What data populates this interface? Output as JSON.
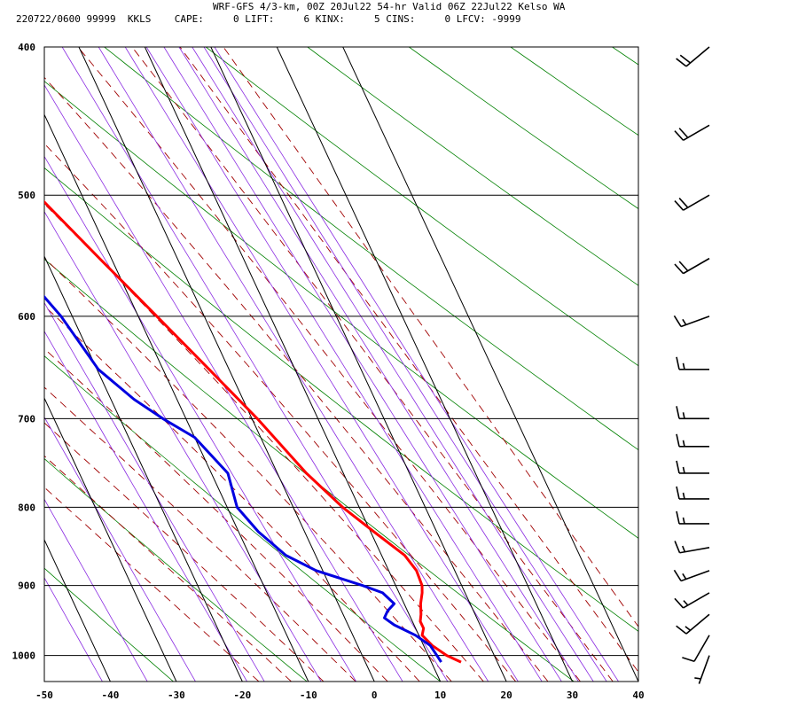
{
  "header": {
    "line1": "WRF-GFS 4/3-km, 00Z 20Jul22 54-hr Valid 06Z 22Jul22 Kelso WA",
    "line2": "220722/0600 99999  KKLS    CAPE:     0 LIFT:     6 KINX:     5 CINS:     0 LFCV: -9999"
  },
  "colors": {
    "temperature": "#ff0000",
    "dewpoint": "#0000e0",
    "isobar": "#000000",
    "isotherm": "#000000",
    "dry_adiabat": "#008000",
    "moist_adiabat": "#a00000",
    "mixing_ratio": "#8a2be2",
    "wind_barb": "#000000"
  },
  "chart_data": {
    "type": "line",
    "subtype": "skew-t log-p sounding",
    "xlabel": "",
    "ylabel": "",
    "x_ticks": [
      -50,
      -40,
      -30,
      -20,
      -10,
      0,
      10,
      20,
      30,
      40
    ],
    "y_ticks": [
      400,
      500,
      600,
      700,
      800,
      900,
      1000
    ],
    "xlim": [
      -50,
      40
    ],
    "ylim": [
      1040,
      400
    ],
    "y_scale": "log",
    "series": [
      {
        "key": "temperature",
        "pressure": [
          1010,
          1000,
          985,
          970,
          960,
          950,
          940,
          925,
          910,
          900,
          880,
          860,
          830,
          800,
          760,
          700,
          650,
          600,
          550,
          500,
          470,
          440,
          415
        ],
        "x": [
          14.5,
          12.8,
          11.3,
          10.5,
          11.2,
          11.2,
          11.8,
          12.5,
          13.5,
          14.0,
          14.2,
          13.5,
          10.5,
          7.5,
          4.4,
          0.8,
          -3.0,
          -7.2,
          -11.8,
          -16.7,
          -20.3,
          -23.8,
          -26.5
        ]
      },
      {
        "key": "dewpoint",
        "pressure": [
          1010,
          1000,
          985,
          970,
          955,
          945,
          935,
          925,
          910,
          900,
          880,
          860,
          830,
          800,
          760,
          720,
          700,
          680,
          650,
          600,
          550,
          500,
          470,
          440,
          415
        ],
        "x": [
          11.5,
          11.3,
          11.0,
          9.5,
          7.0,
          6.0,
          7.0,
          8.5,
          7.5,
          5.0,
          -1.0,
          -4.5,
          -7.0,
          -8.5,
          -7.5,
          -10.0,
          -13.5,
          -16.5,
          -19.8,
          -21.7,
          -25.2,
          -29.3,
          -31.2,
          -36.5,
          -43.5
        ]
      }
    ],
    "wind_barbs": [
      {
        "pressure": 1000,
        "direction": 200,
        "speed": 5
      },
      {
        "pressure": 970,
        "direction": 210,
        "speed": 10
      },
      {
        "pressure": 940,
        "direction": 230,
        "speed": 15
      },
      {
        "pressure": 910,
        "direction": 240,
        "speed": 15
      },
      {
        "pressure": 880,
        "direction": 250,
        "speed": 15
      },
      {
        "pressure": 850,
        "direction": 260,
        "speed": 15
      },
      {
        "pressure": 820,
        "direction": 270,
        "speed": 15
      },
      {
        "pressure": 790,
        "direction": 270,
        "speed": 15
      },
      {
        "pressure": 760,
        "direction": 270,
        "speed": 15
      },
      {
        "pressure": 730,
        "direction": 270,
        "speed": 15
      },
      {
        "pressure": 700,
        "direction": 270,
        "speed": 15
      },
      {
        "pressure": 650,
        "direction": 270,
        "speed": 15
      },
      {
        "pressure": 600,
        "direction": 250,
        "speed": 15
      },
      {
        "pressure": 550,
        "direction": 240,
        "speed": 20
      },
      {
        "pressure": 500,
        "direction": 240,
        "speed": 20
      },
      {
        "pressure": 450,
        "direction": 240,
        "speed": 20
      },
      {
        "pressure": 400,
        "direction": 230,
        "speed": 20
      }
    ],
    "grid": true,
    "legend": "none"
  }
}
